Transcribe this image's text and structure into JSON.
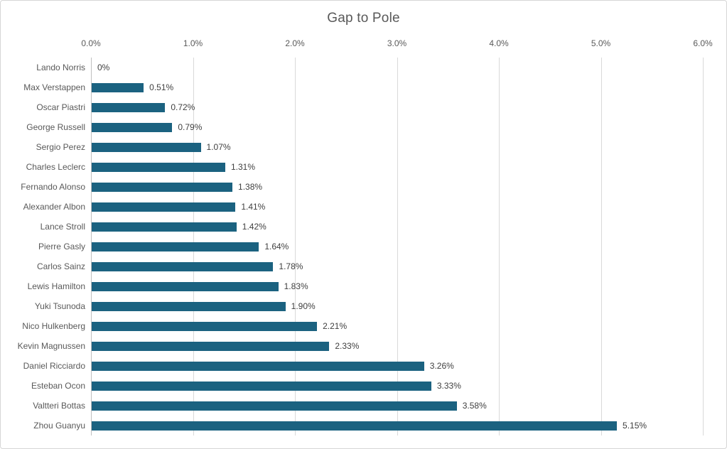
{
  "chart": {
    "colors": {
      "bar": "#1b6280",
      "gridline": "#d9d9d9",
      "axis_line": "#bfbfbf",
      "title_text": "#595959",
      "tick_text": "#595959",
      "category_text": "#595959",
      "value_text": "#404040",
      "background": "#ffffff",
      "border": "#d6d6d6"
    }
  },
  "chart_data": {
    "type": "bar",
    "orientation": "horizontal",
    "title": "Gap to Pole",
    "categories": [
      "Lando Norris",
      "Max Verstappen",
      "Oscar Piastri",
      "George Russell",
      "Sergio Perez",
      "Charles Leclerc",
      "Fernando Alonso",
      "Alexander Albon",
      "Lance Stroll",
      "Pierre Gasly",
      "Carlos Sainz",
      "Lewis Hamilton",
      "Yuki Tsunoda",
      "Nico Hulkenberg",
      "Kevin Magnussen",
      "Daniel Ricciardo",
      "Esteban Ocon",
      "Valtteri Bottas",
      "Zhou Guanyu"
    ],
    "values": [
      0,
      0.51,
      0.72,
      0.79,
      1.07,
      1.31,
      1.38,
      1.41,
      1.42,
      1.64,
      1.78,
      1.83,
      1.9,
      2.21,
      2.33,
      3.26,
      3.33,
      3.58,
      5.15
    ],
    "value_labels": [
      "0%",
      "0.51%",
      "0.72%",
      "0.79%",
      "1.07%",
      "1.31%",
      "1.38%",
      "1.41%",
      "1.42%",
      "1.64%",
      "1.78%",
      "1.83%",
      "1.90%",
      "2.21%",
      "2.33%",
      "3.26%",
      "3.33%",
      "3.58%",
      "5.15%"
    ],
    "x_axis": {
      "position": "top",
      "min": 0,
      "max": 6,
      "tick_step": 1,
      "ticks": [
        "0.0%",
        "1.0%",
        "2.0%",
        "3.0%",
        "4.0%",
        "5.0%",
        "6.0%"
      ]
    },
    "ylabel": "",
    "xlabel": "",
    "grid": true,
    "legend": false
  }
}
